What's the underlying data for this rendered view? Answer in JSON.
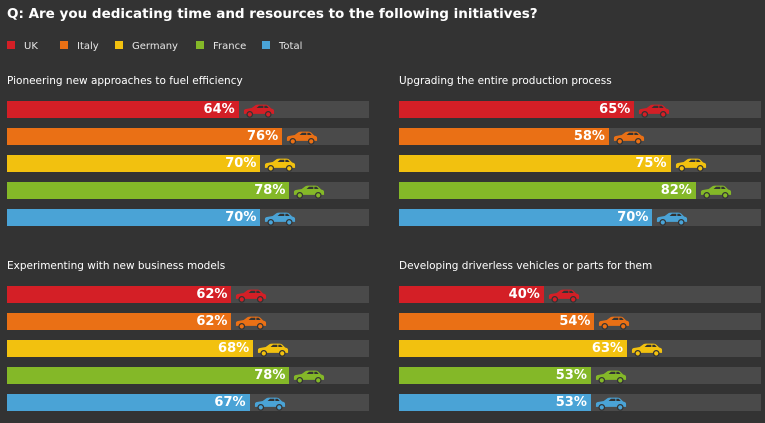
{
  "question": "Q: Are you dedicating time and resources to the following initiatives?",
  "legend": [
    {
      "name": "UK",
      "color": "#d41f26"
    },
    {
      "name": "Italy",
      "color": "#ea7015"
    },
    {
      "name": "Germany",
      "color": "#f2c10f"
    },
    {
      "name": "France",
      "color": "#84b828"
    },
    {
      "name": "Total",
      "color": "#4aa3d6"
    }
  ],
  "chart_data": [
    {
      "type": "bar",
      "title": "Pioneering new approaches to fuel efficiency",
      "categories": [
        "UK",
        "Italy",
        "Germany",
        "France",
        "Total"
      ],
      "values": [
        64,
        76,
        70,
        78,
        70
      ],
      "labels": [
        "64%",
        "76%",
        "70%",
        "78%",
        "70%"
      ],
      "ylim": [
        0,
        100
      ]
    },
    {
      "type": "bar",
      "title": "Upgrading the entire production process",
      "categories": [
        "UK",
        "Italy",
        "Germany",
        "France",
        "Total"
      ],
      "values": [
        65,
        58,
        75,
        82,
        70
      ],
      "labels": [
        "65%",
        "58%",
        "75%",
        "82%",
        "70%"
      ],
      "ylim": [
        0,
        100
      ]
    },
    {
      "type": "bar",
      "title": "Experimenting with new business models",
      "categories": [
        "UK",
        "Italy",
        "Germany",
        "France",
        "Total"
      ],
      "values": [
        62,
        62,
        68,
        78,
        67
      ],
      "labels": [
        "62%",
        "62%",
        "68%",
        "78%",
        "67%"
      ],
      "ylim": [
        0,
        100
      ]
    },
    {
      "type": "bar",
      "title": "Developing driverless vehicles or parts for them",
      "categories": [
        "UK",
        "Italy",
        "Germany",
        "France",
        "Total"
      ],
      "values": [
        40,
        54,
        63,
        53,
        53
      ],
      "labels": [
        "40%",
        "54%",
        "63%",
        "53%",
        "53%"
      ],
      "ylim": [
        0,
        100
      ]
    }
  ],
  "icon": "car-icon"
}
